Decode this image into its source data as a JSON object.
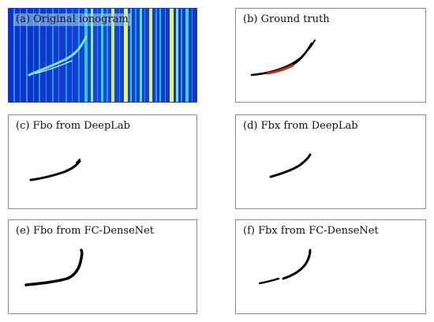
{
  "panels": {
    "a": {
      "label": "(a) Original ionogram"
    },
    "b": {
      "label": "(b) Ground truth"
    },
    "c": {
      "label": "(c) Fbo from DeepLab"
    },
    "d": {
      "label": "(d) Fbx from DeepLab"
    },
    "e": {
      "label": "(e) Fbo from FC-DenseNet"
    },
    "f": {
      "label": "(f) Fbx from FC-DenseNet"
    }
  },
  "colors": {
    "ionogram_background": "#1736c9",
    "stripe_cyan": "#19c6e6",
    "stripe_yellow": "#e8f06a",
    "trace_color": "#000000",
    "ground_truth_overlay": "#c03020",
    "border": "#8c8c8c"
  }
}
